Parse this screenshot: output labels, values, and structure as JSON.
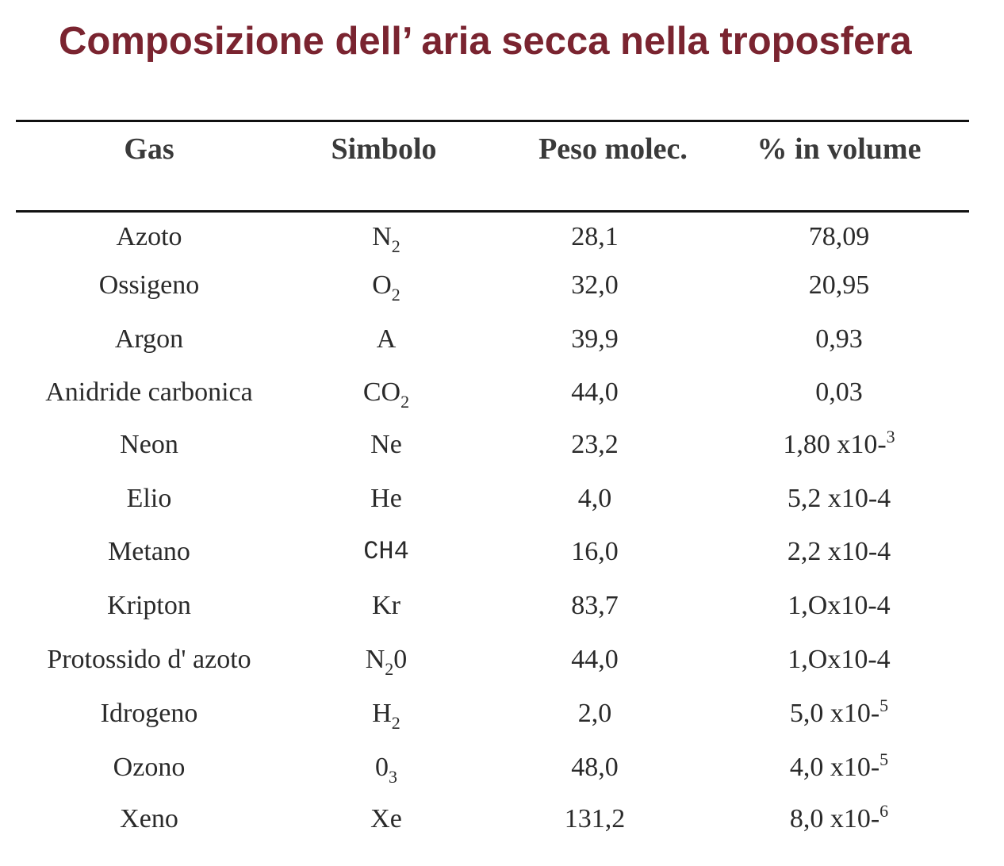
{
  "title": "Composizione dell’ aria secca nella troposfera",
  "headers": {
    "gas": "Gas",
    "symbol": "Simbolo",
    "weight": "Peso molec.",
    "volume": "% in volume"
  },
  "rows": [
    {
      "gas": "Azoto",
      "sym_base": "N",
      "sym_sub": "2",
      "sym_tail": "",
      "weight": "28,1",
      "vol_base": "78,09",
      "vol_sup": ""
    },
    {
      "gas": "Ossigeno",
      "sym_base": "O",
      "sym_sub": "2",
      "sym_tail": "",
      "weight": "32,0",
      "vol_base": "20,95",
      "vol_sup": ""
    },
    {
      "gas": "Argon",
      "sym_base": "A",
      "sym_sub": "",
      "sym_tail": "",
      "weight": "39,9",
      "vol_base": "0,93",
      "vol_sup": ""
    },
    {
      "gas": "Anidride carbonica",
      "sym_base": "CO",
      "sym_sub": "2",
      "sym_tail": "",
      "weight": "44,0",
      "vol_base": "0,03",
      "vol_sup": ""
    },
    {
      "gas": "Neon",
      "sym_base": "Ne",
      "sym_sub": "",
      "sym_tail": "",
      "weight": "23,2",
      "vol_base": "1,80 x10-",
      "vol_sup": "3"
    },
    {
      "gas": "Elio",
      "sym_base": "He",
      "sym_sub": "",
      "sym_tail": "",
      "weight": "4,0",
      "vol_base": "5,2 x10-4",
      "vol_sup": ""
    },
    {
      "gas": "Metano",
      "sym_base": "CH4",
      "sym_sub": "",
      "sym_tail": "",
      "weight": "16,0",
      "vol_base": "2,2 x10-4",
      "vol_sup": "",
      "mono": true
    },
    {
      "gas": "Kripton",
      "sym_base": "Kr",
      "sym_sub": "",
      "sym_tail": "",
      "weight": "83,7",
      "vol_base": "1,Ox10-4",
      "vol_sup": ""
    },
    {
      "gas": "Protossido d' azoto",
      "sym_base": "N",
      "sym_sub": "2",
      "sym_tail": "0",
      "weight": "44,0",
      "vol_base": "1,Ox10-4",
      "vol_sup": ""
    },
    {
      "gas": "Idrogeno",
      "sym_base": "H",
      "sym_sub": "2",
      "sym_tail": "",
      "weight": "2,0",
      "vol_base": "5,0 x10-",
      "vol_sup": "5"
    },
    {
      "gas": "Ozono",
      "sym_base": "0",
      "sym_sub": "3",
      "sym_tail": "",
      "weight": "48,0",
      "vol_base": "4,0 x10-",
      "vol_sup": "5"
    },
    {
      "gas": "Xeno",
      "sym_base": "Xe",
      "sym_sub": "",
      "sym_tail": "",
      "weight": "131,2",
      "vol_base": "8,0 x10-",
      "vol_sup": "6"
    }
  ],
  "colors": {
    "title": "#7a2430",
    "text": "#2a2a2a",
    "rule": "#111111"
  }
}
